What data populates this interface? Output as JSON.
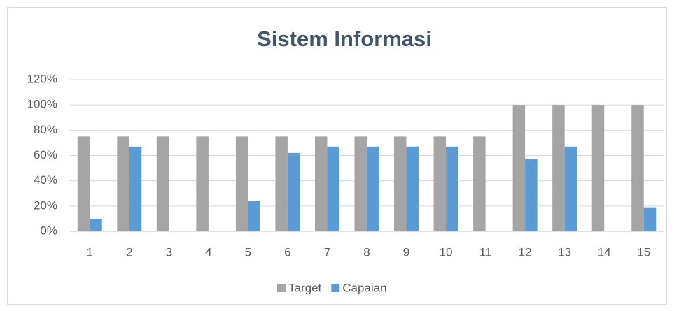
{
  "chart_data": {
    "type": "bar",
    "title": "Sistem Informasi",
    "categories": [
      "1",
      "2",
      "3",
      "4",
      "5",
      "6",
      "7",
      "8",
      "9",
      "10",
      "11",
      "12",
      "13",
      "14",
      "15"
    ],
    "series": [
      {
        "name": "Target",
        "color": "#a5a5a5",
        "values": [
          75,
          75,
          75,
          75,
          75,
          75,
          75,
          75,
          75,
          75,
          75,
          100,
          100,
          100,
          100
        ]
      },
      {
        "name": "Capaian",
        "color": "#5b9bd5",
        "values": [
          10,
          67,
          0,
          0,
          24,
          62,
          67,
          67,
          67,
          67,
          0,
          57,
          67,
          0,
          19
        ]
      }
    ],
    "ylim": [
      0,
      120
    ],
    "yticks": [
      {
        "value": 0,
        "label": "0%"
      },
      {
        "value": 20,
        "label": "20%"
      },
      {
        "value": 40,
        "label": "40%"
      },
      {
        "value": 60,
        "label": "60%"
      },
      {
        "value": 80,
        "label": "80%"
      },
      {
        "value": 100,
        "label": "100%"
      },
      {
        "value": 120,
        "label": "120%"
      }
    ],
    "grid": true,
    "legend": "bottom"
  }
}
